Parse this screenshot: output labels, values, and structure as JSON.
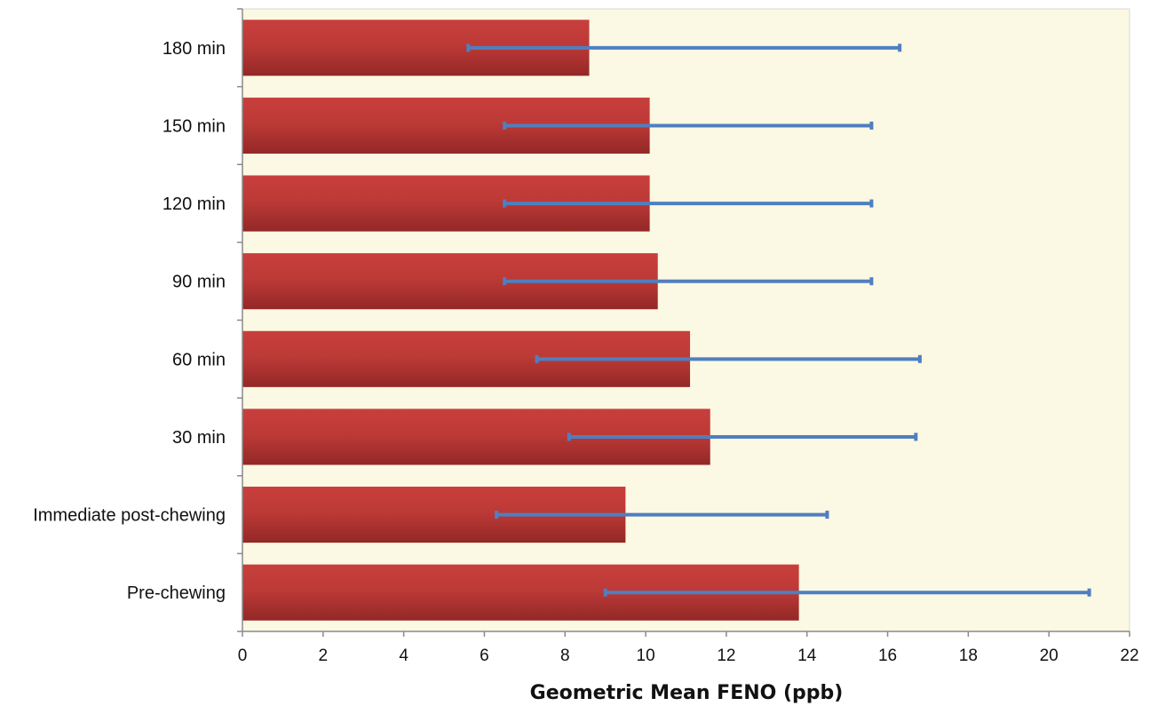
{
  "chart_data": {
    "type": "bar",
    "orientation": "horizontal",
    "title": "",
    "xlabel": "Geometric Mean FENO (ppb)",
    "ylabel": "",
    "xlim": [
      0,
      22
    ],
    "x_ticks": [
      0,
      2,
      4,
      6,
      8,
      10,
      12,
      14,
      16,
      18,
      20,
      22
    ],
    "categories": [
      "Pre-chewing",
      "Immediate post-chewing",
      "30 min",
      "60 min",
      "90 min",
      "120 min",
      "150 min",
      "180 min"
    ],
    "series": [
      {
        "values": [
          13.8,
          9.5,
          11.6,
          11.1,
          10.3,
          10.1,
          10.1,
          8.6
        ],
        "error_low": [
          9.0,
          6.3,
          8.1,
          7.3,
          6.5,
          6.5,
          6.5,
          5.6
        ],
        "error_high": [
          21.0,
          14.5,
          16.7,
          16.8,
          15.6,
          15.6,
          15.6,
          16.3
        ]
      }
    ],
    "grid": false,
    "legend": "none",
    "colors": {
      "bar_top": "#c83f3c",
      "bar_bottom": "#932826",
      "error_bar": "#4f7fc0",
      "plot_background": "#fbf8e3",
      "axis": "#8a8a8a"
    }
  }
}
